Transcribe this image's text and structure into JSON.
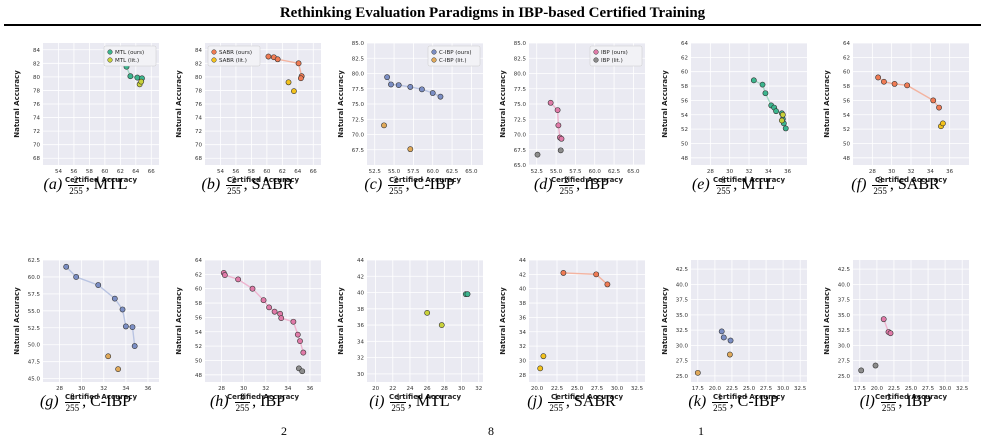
{
  "title": "Rethinking Evaluation Paradigms in IBP-based Certified Training",
  "footer_fragment": "2                                                                   8                                                                    1",
  "colors": {
    "mtl": {
      "ours": "#3cb58e",
      "lit": "#c9d13a",
      "line": "#a7d9c6"
    },
    "sabr": {
      "ours": "#f07b54",
      "lit": "#f3c21c",
      "line": "#f3b3a0"
    },
    "cibp": {
      "ours": "#7b8ec4",
      "lit": "#e0a95a",
      "line": "#b9c4e2"
    },
    "ibp": {
      "ours": "#e07aa8",
      "lit": "#8c8c8c",
      "line": "#eeb4cf"
    },
    "plot_bg": "#eaeaf2",
    "grid": "#ffffff"
  },
  "chart_data": [
    {
      "label": "(a)",
      "eps_num": "2",
      "eps_den": "255",
      "method": "MTL",
      "type": "scatter",
      "theme": "mtl",
      "xlabel": "Certified Accuracy",
      "ylabel": "Natural Accuracy",
      "xlim": [
        52,
        67
      ],
      "ylim": [
        67,
        85
      ],
      "xticks": [
        "54",
        "56",
        "58",
        "60",
        "62",
        "64",
        "66"
      ],
      "yticks": [
        "68",
        "70",
        "72",
        "74",
        "76",
        "78",
        "80",
        "82",
        "84"
      ],
      "legend": true,
      "legend_position": "top-right",
      "series": [
        {
          "name": "MTL (ours)",
          "role": "ours",
          "x": [
            62.8,
            63.3,
            64.2,
            64.8
          ],
          "y": [
            81.5,
            80.1,
            79.9,
            79.8
          ],
          "line": true
        },
        {
          "name": "MTL (lit.)",
          "role": "lit",
          "x": [
            64.5,
            64.7
          ],
          "y": [
            78.9,
            79.3
          ],
          "line": false
        }
      ]
    },
    {
      "label": "(b)",
      "eps_num": "2",
      "eps_den": "255",
      "method": "SABR",
      "type": "scatter",
      "theme": "sabr",
      "xlabel": "Certified Accuracy",
      "ylabel": "Natural Accuracy",
      "xlim": [
        52,
        67
      ],
      "ylim": [
        67,
        85
      ],
      "xticks": [
        "54",
        "56",
        "58",
        "60",
        "62",
        "64",
        "66"
      ],
      "yticks": [
        "68",
        "70",
        "72",
        "74",
        "76",
        "78",
        "80",
        "82",
        "84"
      ],
      "legend": true,
      "legend_position": "top-left",
      "series": [
        {
          "name": "SABR (ours)",
          "role": "ours",
          "x": [
            60.2,
            60.9,
            61.4,
            64.1,
            64.5,
            64.4
          ],
          "y": [
            83.0,
            82.9,
            82.6,
            82.0,
            80.1,
            79.8
          ],
          "line": true
        },
        {
          "name": "SABR (lit.)",
          "role": "lit",
          "x": [
            62.8,
            63.5
          ],
          "y": [
            79.2,
            77.9
          ],
          "line": false
        }
      ]
    },
    {
      "label": "(c)",
      "eps_num": "2",
      "eps_den": "255",
      "method": "C-IBP",
      "type": "scatter",
      "theme": "cibp",
      "xlabel": "Certified Accuracy",
      "ylabel": "Natural Accuracy",
      "xlim": [
        51.5,
        66.5
      ],
      "ylim": [
        65,
        85
      ],
      "xticks": [
        "52.5",
        "55.0",
        "57.5",
        "60.0",
        "62.5",
        "65.0"
      ],
      "yticks": [
        "67.5",
        "70.0",
        "72.5",
        "75.0",
        "77.5",
        "80.0",
        "82.5",
        "85.0"
      ],
      "legend": true,
      "legend_position": "top-right",
      "series": [
        {
          "name": "C-IBP (ours)",
          "role": "ours",
          "x": [
            54.1,
            54.6,
            55.6,
            57.1,
            58.6,
            60.0,
            61.0
          ],
          "y": [
            79.4,
            78.2,
            78.1,
            77.8,
            77.4,
            76.8,
            76.2
          ],
          "line": true
        },
        {
          "name": "C-IBP (lit.)",
          "role": "lit",
          "x": [
            53.7,
            57.1
          ],
          "y": [
            71.5,
            67.6
          ],
          "line": false
        }
      ]
    },
    {
      "label": "(d)",
      "eps_num": "2",
      "eps_den": "255",
      "method": "IBP",
      "type": "scatter",
      "theme": "ibp",
      "xlabel": "Certified Accuracy",
      "ylabel": "Natural Accuracy",
      "xlim": [
        51.5,
        66.5
      ],
      "ylim": [
        65,
        85
      ],
      "xticks": [
        "52.5",
        "55.0",
        "57.5",
        "60.0",
        "62.5",
        "65.0"
      ],
      "yticks": [
        "65.0",
        "67.5",
        "70.0",
        "72.5",
        "75.0",
        "77.5",
        "80.0",
        "82.5",
        "85.0"
      ],
      "legend": true,
      "legend_position": "top-right",
      "series": [
        {
          "name": "IBP (ours)",
          "role": "ours",
          "x": [
            54.3,
            55.2,
            55.3,
            55.5,
            55.7
          ],
          "y": [
            75.2,
            74.0,
            71.5,
            69.5,
            69.3
          ],
          "line": true
        },
        {
          "name": "IBP (lit.)",
          "role": "lit",
          "x": [
            52.6,
            55.6
          ],
          "y": [
            66.7,
            67.4
          ],
          "line": false
        }
      ]
    },
    {
      "label": "(e)",
      "eps_num": "8",
      "eps_den": "255",
      "method": "MTL",
      "type": "scatter",
      "theme": "mtl",
      "xlabel": "Certified Accuracy",
      "ylabel": "Natural Accuracy",
      "xlim": [
        26,
        38
      ],
      "ylim": [
        47,
        64
      ],
      "xticks": [
        "28",
        "30",
        "32",
        "34",
        "36"
      ],
      "yticks": [
        "48",
        "50",
        "52",
        "54",
        "56",
        "58",
        "60",
        "62",
        "64"
      ],
      "legend": false,
      "series": [
        {
          "name": "",
          "role": "ours",
          "x": [
            32.5,
            33.4,
            33.7,
            34.3,
            34.6,
            34.8,
            35.4,
            35.5,
            35.6,
            35.8
          ],
          "y": [
            58.8,
            58.2,
            57.0,
            55.3,
            55.0,
            54.5,
            54.2,
            53.4,
            52.8,
            52.1
          ],
          "line": true
        },
        {
          "name": "",
          "role": "lit",
          "x": [
            35.4,
            35.5
          ],
          "y": [
            53.2,
            54.0
          ],
          "line": false
        }
      ]
    },
    {
      "label": "(f)",
      "eps_num": "8",
      "eps_den": "255",
      "method": "SABR",
      "type": "scatter",
      "theme": "sabr",
      "xlabel": "Certified Accuracy",
      "ylabel": "Natural Accuracy",
      "xlim": [
        26,
        38
      ],
      "ylim": [
        47,
        64
      ],
      "xticks": [
        "28",
        "30",
        "32",
        "34",
        "36"
      ],
      "yticks": [
        "48",
        "50",
        "52",
        "54",
        "56",
        "58",
        "60",
        "62",
        "64"
      ],
      "legend": false,
      "series": [
        {
          "name": "",
          "role": "ours",
          "x": [
            28.6,
            29.2,
            30.3,
            31.6,
            34.3,
            34.9
          ],
          "y": [
            59.2,
            58.6,
            58.3,
            58.1,
            56.0,
            55.0
          ],
          "line": true
        },
        {
          "name": "",
          "role": "lit",
          "x": [
            35.1,
            35.3
          ],
          "y": [
            52.4,
            52.8
          ],
          "line": false
        }
      ]
    },
    {
      "label": "(g)",
      "eps_num": "8",
      "eps_den": "255",
      "method": "C-IBP",
      "type": "scatter",
      "theme": "cibp",
      "xlabel": "Certified Accuracy",
      "ylabel": "Natural Accuracy",
      "xlim": [
        26.5,
        37
      ],
      "ylim": [
        44.5,
        62.5
      ],
      "xticks": [
        "28",
        "30",
        "32",
        "34",
        "36"
      ],
      "yticks": [
        "45.0",
        "47.5",
        "50.0",
        "52.5",
        "55.0",
        "57.5",
        "60.0",
        "62.5"
      ],
      "legend": false,
      "series": [
        {
          "name": "",
          "role": "ours",
          "x": [
            28.6,
            29.5,
            31.5,
            33.0,
            33.7,
            34.0,
            34.6,
            34.8
          ],
          "y": [
            61.5,
            60.0,
            58.8,
            56.8,
            55.2,
            52.7,
            52.6,
            49.8
          ],
          "line": true
        },
        {
          "name": "",
          "role": "lit",
          "x": [
            32.4,
            33.3
          ],
          "y": [
            48.3,
            46.4
          ],
          "line": false
        }
      ]
    },
    {
      "label": "(h)",
      "eps_num": "8",
      "eps_den": "255",
      "method": "IBP",
      "type": "scatter",
      "theme": "ibp",
      "xlabel": "Certified Accuracy",
      "ylabel": "Natural Accuracy",
      "xlim": [
        26.5,
        37
      ],
      "ylim": [
        47,
        64
      ],
      "xticks": [
        "28",
        "30",
        "32",
        "34",
        "36"
      ],
      "yticks": [
        "48",
        "50",
        "52",
        "54",
        "56",
        "58",
        "60",
        "62",
        "64"
      ],
      "legend": false,
      "series": [
        {
          "name": "",
          "role": "ours",
          "x": [
            28.2,
            28.3,
            29.5,
            30.8,
            31.8,
            32.3,
            32.8,
            33.3,
            33.4,
            34.5,
            34.9,
            35.1,
            35.4
          ],
          "y": [
            62.2,
            61.9,
            61.3,
            60.0,
            58.4,
            57.4,
            56.8,
            56.5,
            55.9,
            55.4,
            53.6,
            52.7,
            51.1
          ],
          "line": true
        },
        {
          "name": "",
          "role": "lit",
          "x": [
            35.0,
            35.3
          ],
          "y": [
            48.9,
            48.5
          ],
          "line": false
        }
      ]
    },
    {
      "label": "(i)",
      "eps_num": "1",
      "eps_den": "255",
      "method": "MTL",
      "type": "scatter",
      "theme": "mtl",
      "xlabel": "Certified Accuracy",
      "ylabel": "Natural Accuracy",
      "xlim": [
        19,
        32.5
      ],
      "ylim": [
        29,
        44
      ],
      "xticks": [
        "20",
        "22",
        "24",
        "26",
        "28",
        "30",
        "32"
      ],
      "yticks": [
        "30",
        "32",
        "34",
        "36",
        "38",
        "40",
        "42",
        "44"
      ],
      "legend": false,
      "series": [
        {
          "name": "",
          "role": "ours",
          "x": [
            30.5,
            30.7
          ],
          "y": [
            39.8,
            39.8
          ],
          "line": true
        },
        {
          "name": "",
          "role": "lit",
          "x": [
            26.0,
            27.7
          ],
          "y": [
            37.5,
            36.0
          ],
          "line": false
        }
      ]
    },
    {
      "label": "(j)",
      "eps_num": "1",
      "eps_den": "255",
      "method": "SABR",
      "type": "scatter",
      "theme": "sabr",
      "xlabel": "Certified Accuracy",
      "ylabel": "Natural Accuracy",
      "xlim": [
        19,
        33.5
      ],
      "ylim": [
        27,
        44
      ],
      "xticks": [
        "20.0",
        "22.5",
        "25.0",
        "27.5",
        "30.0",
        "32.5"
      ],
      "yticks": [
        "28",
        "30",
        "32",
        "34",
        "36",
        "38",
        "40",
        "42",
        "44"
      ],
      "legend": false,
      "series": [
        {
          "name": "",
          "role": "ours",
          "x": [
            23.3,
            27.4,
            28.8
          ],
          "y": [
            42.2,
            42.0,
            40.6
          ],
          "line": true
        },
        {
          "name": "",
          "role": "lit",
          "x": [
            20.4,
            20.8
          ],
          "y": [
            28.9,
            30.6
          ],
          "line": false
        }
      ]
    },
    {
      "label": "(k)",
      "eps_num": "1",
      "eps_den": "255",
      "method": "C-IBP",
      "type": "scatter",
      "theme": "cibp",
      "xlabel": "Certified Accuracy",
      "ylabel": "Natural Accuracy",
      "xlim": [
        16.5,
        33.5
      ],
      "ylim": [
        24,
        44
      ],
      "xticks": [
        "17.5",
        "20.0",
        "22.5",
        "25.0",
        "27.5",
        "30.0",
        "32.5"
      ],
      "yticks": [
        "25.0",
        "27.5",
        "30.0",
        "32.5",
        "35.0",
        "37.5",
        "40.0",
        "42.5"
      ],
      "legend": false,
      "series": [
        {
          "name": "",
          "role": "ours",
          "x": [
            21.0,
            21.3,
            22.3
          ],
          "y": [
            32.3,
            31.3,
            30.8
          ],
          "line": true
        },
        {
          "name": "",
          "role": "lit",
          "x": [
            17.5,
            22.2
          ],
          "y": [
            25.5,
            28.5
          ],
          "line": false
        }
      ]
    },
    {
      "label": "(l)",
      "eps_num": "1",
      "eps_den": "255",
      "method": "IBP",
      "type": "scatter",
      "theme": "ibp",
      "xlabel": "Certified Accuracy",
      "ylabel": "Natural Accuracy",
      "xlim": [
        16.5,
        33.5
      ],
      "ylim": [
        24,
        44
      ],
      "xticks": [
        "17.5",
        "20.0",
        "22.5",
        "25.0",
        "27.5",
        "30.0",
        "32.5"
      ],
      "yticks": [
        "25.0",
        "27.5",
        "30.0",
        "32.5",
        "35.0",
        "37.5",
        "40.0",
        "42.5"
      ],
      "legend": false,
      "series": [
        {
          "name": "",
          "role": "ours",
          "x": [
            21.0,
            21.7,
            22.0
          ],
          "y": [
            34.3,
            32.2,
            32.0
          ],
          "line": true
        },
        {
          "name": "",
          "role": "lit",
          "x": [
            17.7,
            19.8
          ],
          "y": [
            25.9,
            26.7
          ],
          "line": false
        }
      ]
    }
  ]
}
